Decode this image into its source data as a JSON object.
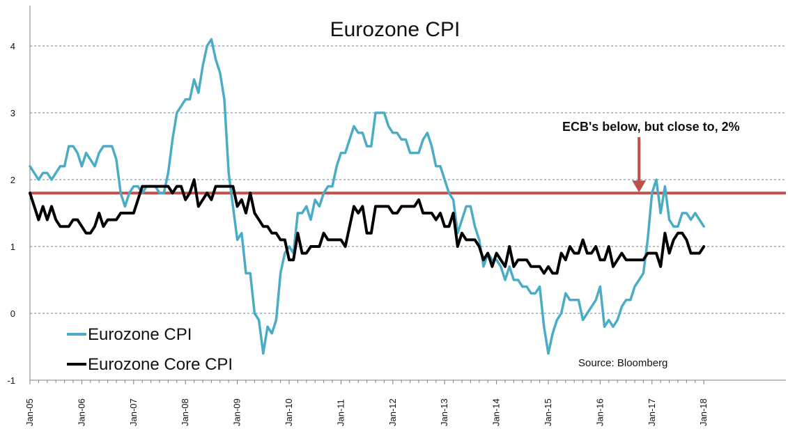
{
  "chart_data": {
    "type": "line",
    "title": "Eurozone CPI",
    "xlabel": "",
    "ylabel": "",
    "ylim": [
      -1,
      4.4
    ],
    "yticks": [
      -1,
      0,
      1,
      2,
      3,
      4
    ],
    "ytick_labels": [
      "-1",
      "0",
      "1",
      "2",
      "3",
      "4"
    ],
    "x_start": "2005-01",
    "x_end": "2018-01",
    "xtick_labels": [
      "Jan-05",
      "Jan-06",
      "Jan-07",
      "Jan-08",
      "Jan-09",
      "Jan-10",
      "Jan-11",
      "Jan-12",
      "Jan-13",
      "Jan-14",
      "Jan-15",
      "Jan-16",
      "Jan-17",
      "Jan-18"
    ],
    "grid": true,
    "legend_position": "bottom-left",
    "series": [
      {
        "name": "Eurozone CPI",
        "color": "#4bacc6",
        "points": [
          [
            0,
            2.2
          ],
          [
            1,
            2.1
          ],
          [
            2,
            2.0
          ],
          [
            3,
            2.1
          ],
          [
            4,
            2.1
          ],
          [
            5,
            2.0
          ],
          [
            6,
            2.1
          ],
          [
            7,
            2.2
          ],
          [
            8,
            2.2
          ],
          [
            9,
            2.5
          ],
          [
            10,
            2.5
          ],
          [
            11,
            2.4
          ],
          [
            12,
            2.2
          ],
          [
            13,
            2.4
          ],
          [
            14,
            2.3
          ],
          [
            15,
            2.2
          ],
          [
            16,
            2.4
          ],
          [
            17,
            2.5
          ],
          [
            18,
            2.5
          ],
          [
            19,
            2.5
          ],
          [
            20,
            2.3
          ],
          [
            21,
            1.8
          ],
          [
            22,
            1.6
          ],
          [
            23,
            1.8
          ],
          [
            24,
            1.9
          ],
          [
            25,
            1.9
          ],
          [
            26,
            1.8
          ],
          [
            27,
            1.9
          ],
          [
            28,
            1.9
          ],
          [
            29,
            1.9
          ],
          [
            30,
            1.8
          ],
          [
            31,
            1.8
          ],
          [
            32,
            2.1
          ],
          [
            33,
            2.6
          ],
          [
            34,
            3.0
          ],
          [
            35,
            3.1
          ],
          [
            36,
            3.2
          ],
          [
            37,
            3.2
          ],
          [
            38,
            3.5
          ],
          [
            39,
            3.3
          ],
          [
            40,
            3.7
          ],
          [
            41,
            4.0
          ],
          [
            42,
            4.1
          ],
          [
            43,
            3.8
          ],
          [
            44,
            3.6
          ],
          [
            45,
            3.2
          ],
          [
            46,
            2.1
          ],
          [
            47,
            1.6
          ],
          [
            48,
            1.1
          ],
          [
            49,
            1.2
          ],
          [
            50,
            0.6
          ],
          [
            51,
            0.6
          ],
          [
            52,
            0.0
          ],
          [
            53,
            -0.1
          ],
          [
            54,
            -0.6
          ],
          [
            55,
            -0.2
          ],
          [
            56,
            -0.3
          ],
          [
            57,
            -0.1
          ],
          [
            58,
            0.6
          ],
          [
            59,
            0.9
          ],
          [
            60,
            1.0
          ],
          [
            61,
            0.9
          ],
          [
            62,
            1.5
          ],
          [
            63,
            1.5
          ],
          [
            64,
            1.6
          ],
          [
            65,
            1.4
          ],
          [
            66,
            1.7
          ],
          [
            67,
            1.6
          ],
          [
            68,
            1.8
          ],
          [
            69,
            1.9
          ],
          [
            70,
            1.9
          ],
          [
            71,
            2.2
          ],
          [
            72,
            2.4
          ],
          [
            73,
            2.4
          ],
          [
            74,
            2.6
          ],
          [
            75,
            2.8
          ],
          [
            76,
            2.7
          ],
          [
            77,
            2.7
          ],
          [
            78,
            2.5
          ],
          [
            79,
            2.5
          ],
          [
            80,
            3.0
          ],
          [
            81,
            3.0
          ],
          [
            82,
            3.0
          ],
          [
            83,
            2.8
          ],
          [
            84,
            2.7
          ],
          [
            85,
            2.7
          ],
          [
            86,
            2.6
          ],
          [
            87,
            2.6
          ],
          [
            88,
            2.4
          ],
          [
            89,
            2.4
          ],
          [
            90,
            2.4
          ],
          [
            91,
            2.6
          ],
          [
            92,
            2.7
          ],
          [
            93,
            2.5
          ],
          [
            94,
            2.2
          ],
          [
            95,
            2.2
          ],
          [
            96,
            2.0
          ],
          [
            97,
            1.8
          ],
          [
            98,
            1.7
          ],
          [
            99,
            1.2
          ],
          [
            100,
            1.4
          ],
          [
            101,
            1.6
          ],
          [
            102,
            1.6
          ],
          [
            103,
            1.3
          ],
          [
            104,
            1.1
          ],
          [
            105,
            0.7
          ],
          [
            106,
            0.9
          ],
          [
            107,
            0.8
          ],
          [
            108,
            0.8
          ],
          [
            109,
            0.7
          ],
          [
            110,
            0.5
          ],
          [
            111,
            0.7
          ],
          [
            112,
            0.5
          ],
          [
            113,
            0.5
          ],
          [
            114,
            0.4
          ],
          [
            115,
            0.4
          ],
          [
            116,
            0.3
          ],
          [
            117,
            0.3
          ],
          [
            118,
            0.4
          ],
          [
            119,
            -0.2
          ],
          [
            120,
            -0.6
          ],
          [
            121,
            -0.3
          ],
          [
            122,
            -0.1
          ],
          [
            123,
            0.0
          ],
          [
            124,
            0.3
          ],
          [
            125,
            0.2
          ],
          [
            126,
            0.2
          ],
          [
            127,
            0.2
          ],
          [
            128,
            -0.1
          ],
          [
            129,
            0.0
          ],
          [
            130,
            0.1
          ],
          [
            131,
            0.2
          ],
          [
            132,
            0.4
          ],
          [
            133,
            -0.2
          ],
          [
            134,
            -0.1
          ],
          [
            135,
            -0.2
          ],
          [
            136,
            -0.1
          ],
          [
            137,
            0.1
          ],
          [
            138,
            0.2
          ],
          [
            139,
            0.2
          ],
          [
            140,
            0.4
          ],
          [
            141,
            0.5
          ],
          [
            142,
            0.6
          ],
          [
            143,
            1.1
          ],
          [
            144,
            1.8
          ],
          [
            145,
            2.0
          ],
          [
            146,
            1.5
          ],
          [
            147,
            1.9
          ],
          [
            148,
            1.4
          ],
          [
            149,
            1.3
          ],
          [
            150,
            1.3
          ],
          [
            151,
            1.5
          ],
          [
            152,
            1.5
          ],
          [
            153,
            1.4
          ],
          [
            154,
            1.5
          ],
          [
            155,
            1.4
          ],
          [
            156,
            1.3
          ]
        ]
      },
      {
        "name": "Eurozone Core CPI",
        "color": "#000000",
        "points": [
          [
            0,
            1.8
          ],
          [
            1,
            1.6
          ],
          [
            2,
            1.4
          ],
          [
            3,
            1.6
          ],
          [
            4,
            1.4
          ],
          [
            5,
            1.6
          ],
          [
            6,
            1.4
          ],
          [
            7,
            1.3
          ],
          [
            8,
            1.3
          ],
          [
            9,
            1.3
          ],
          [
            10,
            1.4
          ],
          [
            11,
            1.4
          ],
          [
            12,
            1.3
          ],
          [
            13,
            1.2
          ],
          [
            14,
            1.2
          ],
          [
            15,
            1.3
          ],
          [
            16,
            1.5
          ],
          [
            17,
            1.3
          ],
          [
            18,
            1.4
          ],
          [
            19,
            1.4
          ],
          [
            20,
            1.4
          ],
          [
            21,
            1.5
          ],
          [
            22,
            1.5
          ],
          [
            23,
            1.5
          ],
          [
            24,
            1.5
          ],
          [
            25,
            1.7
          ],
          [
            26,
            1.9
          ],
          [
            27,
            1.9
          ],
          [
            28,
            1.9
          ],
          [
            29,
            1.9
          ],
          [
            30,
            1.9
          ],
          [
            31,
            1.9
          ],
          [
            32,
            1.9
          ],
          [
            33,
            1.8
          ],
          [
            34,
            1.9
          ],
          [
            35,
            1.9
          ],
          [
            36,
            1.7
          ],
          [
            37,
            1.8
          ],
          [
            38,
            2.0
          ],
          [
            39,
            1.6
          ],
          [
            40,
            1.7
          ],
          [
            41,
            1.8
          ],
          [
            42,
            1.7
          ],
          [
            43,
            1.9
          ],
          [
            44,
            1.9
          ],
          [
            45,
            1.9
          ],
          [
            46,
            1.9
          ],
          [
            47,
            1.9
          ],
          [
            48,
            1.6
          ],
          [
            49,
            1.7
          ],
          [
            50,
            1.5
          ],
          [
            51,
            1.8
          ],
          [
            52,
            1.5
          ],
          [
            53,
            1.4
          ],
          [
            54,
            1.3
          ],
          [
            55,
            1.3
          ],
          [
            56,
            1.2
          ],
          [
            57,
            1.2
          ],
          [
            58,
            1.1
          ],
          [
            59,
            1.1
          ],
          [
            60,
            0.8
          ],
          [
            61,
            0.8
          ],
          [
            62,
            1.2
          ],
          [
            63,
            0.9
          ],
          [
            64,
            0.9
          ],
          [
            65,
            1.0
          ],
          [
            66,
            1.0
          ],
          [
            67,
            1.0
          ],
          [
            68,
            1.2
          ],
          [
            69,
            1.1
          ],
          [
            70,
            1.1
          ],
          [
            71,
            1.1
          ],
          [
            72,
            1.1
          ],
          [
            73,
            1.0
          ],
          [
            74,
            1.3
          ],
          [
            75,
            1.6
          ],
          [
            76,
            1.5
          ],
          [
            77,
            1.6
          ],
          [
            78,
            1.2
          ],
          [
            79,
            1.2
          ],
          [
            80,
            1.6
          ],
          [
            81,
            1.6
          ],
          [
            82,
            1.6
          ],
          [
            83,
            1.6
          ],
          [
            84,
            1.5
          ],
          [
            85,
            1.5
          ],
          [
            86,
            1.6
          ],
          [
            87,
            1.6
          ],
          [
            88,
            1.6
          ],
          [
            89,
            1.6
          ],
          [
            90,
            1.7
          ],
          [
            91,
            1.5
          ],
          [
            92,
            1.5
          ],
          [
            93,
            1.5
          ],
          [
            94,
            1.4
          ],
          [
            95,
            1.5
          ],
          [
            96,
            1.3
          ],
          [
            97,
            1.3
          ],
          [
            98,
            1.5
          ],
          [
            99,
            1.0
          ],
          [
            100,
            1.2
          ],
          [
            101,
            1.1
          ],
          [
            102,
            1.1
          ],
          [
            103,
            1.1
          ],
          [
            104,
            1.0
          ],
          [
            105,
            0.8
          ],
          [
            106,
            0.9
          ],
          [
            107,
            0.7
          ],
          [
            108,
            0.9
          ],
          [
            109,
            0.8
          ],
          [
            110,
            0.7
          ],
          [
            111,
            1.0
          ],
          [
            112,
            0.7
          ],
          [
            113,
            0.8
          ],
          [
            114,
            0.8
          ],
          [
            115,
            0.8
          ],
          [
            116,
            0.7
          ],
          [
            117,
            0.7
          ],
          [
            118,
            0.7
          ],
          [
            119,
            0.6
          ],
          [
            120,
            0.7
          ],
          [
            121,
            0.6
          ],
          [
            122,
            0.6
          ],
          [
            123,
            0.9
          ],
          [
            124,
            0.8
          ],
          [
            125,
            1.0
          ],
          [
            126,
            0.9
          ],
          [
            127,
            0.9
          ],
          [
            128,
            1.1
          ],
          [
            129,
            0.9
          ],
          [
            130,
            0.9
          ],
          [
            131,
            1.0
          ],
          [
            132,
            0.8
          ],
          [
            133,
            0.8
          ],
          [
            134,
            1.0
          ],
          [
            135,
            0.7
          ],
          [
            136,
            0.8
          ],
          [
            137,
            0.9
          ],
          [
            138,
            0.8
          ],
          [
            139,
            0.8
          ],
          [
            140,
            0.8
          ],
          [
            141,
            0.8
          ],
          [
            142,
            0.8
          ],
          [
            143,
            0.9
          ],
          [
            144,
            0.9
          ],
          [
            145,
            0.9
          ],
          [
            146,
            0.7
          ],
          [
            147,
            1.2
          ],
          [
            148,
            0.9
          ],
          [
            149,
            1.1
          ],
          [
            150,
            1.2
          ],
          [
            151,
            1.2
          ],
          [
            152,
            1.1
          ],
          [
            153,
            0.9
          ],
          [
            154,
            0.9
          ],
          [
            155,
            0.9
          ],
          [
            156,
            1.0
          ]
        ]
      }
    ],
    "reference_line": {
      "value": 1.8,
      "color": "#c0504d"
    },
    "annotation": {
      "text": "ECB's below, but close to, 2%",
      "color": "#c0504d",
      "arrow_target_month": 141
    },
    "source": "Source: Bloomberg"
  }
}
